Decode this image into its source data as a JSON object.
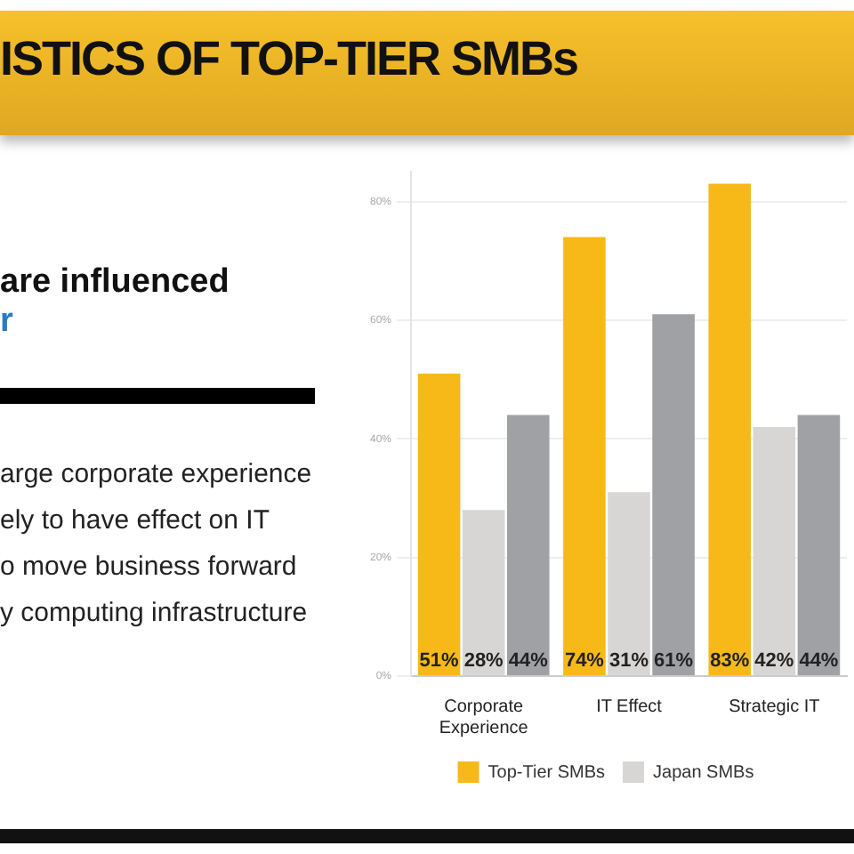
{
  "chart_data": {
    "type": "bar",
    "title": "ISTICS OF TOP-TIER SMBs",
    "annotations": [
      "are influenced",
      "r",
      "arge corporate experience",
      "ely to have effect on IT",
      "o move business forward",
      "y computing infrastructure"
    ],
    "categories": [
      "Corporate Experience",
      "IT Effect",
      "Strategic IT"
    ],
    "series": [
      {
        "name": "Top-Tier SMBs",
        "color": "#f7b918",
        "values": [
          51,
          74,
          83
        ],
        "value_labels": [
          "51%",
          "74%",
          "83%"
        ]
      },
      {
        "name": "Japan SMBs",
        "color": "#d8d6d4",
        "values": [
          28,
          31,
          42
        ],
        "value_labels": [
          "28%",
          "31%",
          "42%"
        ]
      },
      {
        "color": "#a0a1a4",
        "values": [
          44,
          61,
          44
        ],
        "value_labels": [
          "44%",
          "61%",
          "44%"
        ]
      }
    ],
    "ylim": [
      0,
      85
    ],
    "yticks": [
      {
        "value": 0,
        "label": "0%"
      },
      {
        "value": 20,
        "label": "20%"
      },
      {
        "value": 40,
        "label": "40%"
      },
      {
        "value": 60,
        "label": "60%"
      },
      {
        "value": 80,
        "label": "80%"
      }
    ],
    "grid": "y",
    "legend": "bottom"
  }
}
